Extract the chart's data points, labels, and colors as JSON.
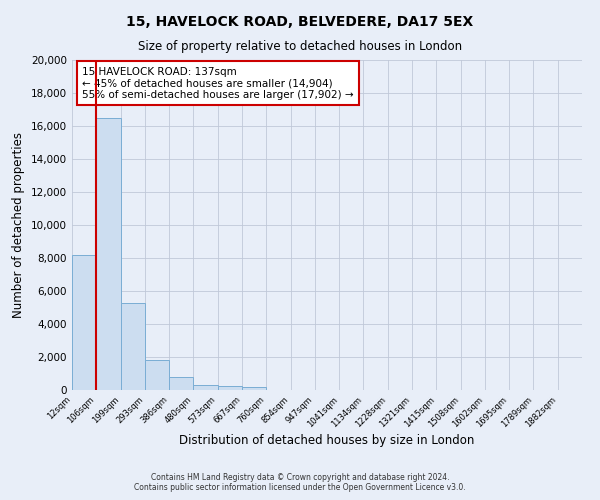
{
  "title1": "15, HAVELOCK ROAD, BELVEDERE, DA17 5EX",
  "title2": "Size of property relative to detached houses in London",
  "xlabel": "Distribution of detached houses by size in London",
  "ylabel": "Number of detached properties",
  "bar_color": "#ccddf0",
  "bar_edgecolor": "#7aadd4",
  "bg_color": "#e8eef8",
  "annotation_box_color": "#ffffff",
  "annotation_box_edgecolor": "#cc0000",
  "vline_color": "#cc0000",
  "vline_x": 0.5,
  "categories": [
    "12sqm",
    "106sqm",
    "199sqm",
    "293sqm",
    "386sqm",
    "480sqm",
    "573sqm",
    "667sqm",
    "760sqm",
    "854sqm",
    "947sqm",
    "1041sqm",
    "1134sqm",
    "1228sqm",
    "1321sqm",
    "1415sqm",
    "1508sqm",
    "1602sqm",
    "1695sqm",
    "1789sqm",
    "1882sqm"
  ],
  "values": [
    8200,
    16500,
    5300,
    1800,
    800,
    320,
    220,
    195,
    0,
    0,
    0,
    0,
    0,
    0,
    0,
    0,
    0,
    0,
    0,
    0,
    0
  ],
  "ylim": [
    0,
    20000
  ],
  "yticks": [
    0,
    2000,
    4000,
    6000,
    8000,
    10000,
    12000,
    14000,
    16000,
    18000,
    20000
  ],
  "annotation_title": "15 HAVELOCK ROAD: 137sqm",
  "annotation_line1": "← 45% of detached houses are smaller (14,904)",
  "annotation_line2": "55% of semi-detached houses are larger (17,902) →",
  "footer1": "Contains HM Land Registry data © Crown copyright and database right 2024.",
  "footer2": "Contains public sector information licensed under the Open Government Licence v3.0.",
  "grid_color": "#c0c8d8"
}
